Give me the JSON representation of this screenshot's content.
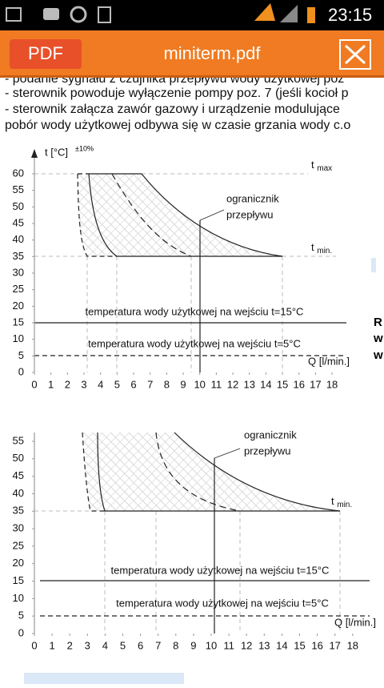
{
  "status_bar": {
    "time": "23:15"
  },
  "toolbar": {
    "pdf_button": "PDF",
    "title": "miniterm.pdf"
  },
  "text_lines": [
    "- podanie sygnału z czujnika przepływu wody użytkowej poz",
    "- sterownik powoduje wyłączenie pompy poz. 7 (jeśli kocioł p",
    "- sterownik załącza zawór  gazowy i urządzenie modulujące",
    "pobór wody użytkowej odbywa się w czasie grzania wody c.o"
  ],
  "side_text": [
    "R",
    "w",
    "w"
  ],
  "charts": [
    {
      "y_label": "t [°C]",
      "y_label_sup": "±10%",
      "t_max": [
        "t",
        "max"
      ],
      "t_min": [
        "t",
        "min."
      ],
      "limiter": [
        "ogranicznik",
        "przepływu"
      ],
      "inlet_15": "temperatura wody użytkowej na wejściu t=15°C",
      "inlet_5": "temperatura wody użytkowej na wejściu t=5°C",
      "x_label": "Q [l/min.]",
      "xticks": [
        0,
        1,
        2,
        3,
        4,
        5,
        6,
        7,
        8,
        9,
        10,
        11,
        12,
        13,
        14,
        15,
        16,
        17,
        18
      ],
      "yticks": [
        0,
        5,
        10,
        15,
        20,
        25,
        30,
        35,
        40,
        45,
        50,
        55,
        60
      ]
    },
    {
      "t_min": [
        "t",
        "min."
      ],
      "limiter": [
        "ogranicznik",
        "przepływu"
      ],
      "inlet_15": "temperatura wody użytkowej na wejściu t=15°C",
      "inlet_5": "temperatura wody użytkowej na wejściu t=5°C",
      "x_label": "Q [l/min.]",
      "xticks": [
        0,
        1,
        2,
        3,
        4,
        5,
        6,
        7,
        8,
        9,
        10,
        11,
        12,
        13,
        14,
        15,
        16,
        17,
        18
      ],
      "yticks": [
        0,
        5,
        10,
        15,
        20,
        25,
        30,
        35,
        40,
        45,
        50,
        55
      ]
    }
  ]
}
